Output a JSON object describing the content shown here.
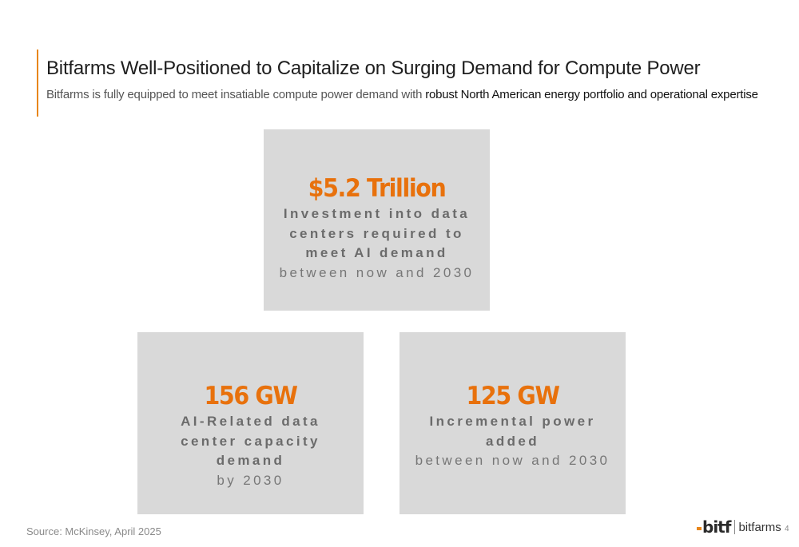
{
  "header": {
    "title": "Bitfarms Well-Positioned to Capitalize on Surging Demand for Compute Power",
    "subtitle_prefix": "Bitfarms is fully equipped to meet insatiable compute power demand with ",
    "subtitle_emphasis": "robust North American energy portfolio and operational expertise"
  },
  "cards": [
    {
      "stat": "$5.2 Trillion",
      "desc_lines": [
        "Investment into data",
        "centers required to",
        "meet AI demand"
      ],
      "light_line": "between now and 2030"
    },
    {
      "stat": "156 GW",
      "desc_lines": [
        "AI-Related data",
        "center capacity",
        "demand"
      ],
      "light_line": "by 2030"
    },
    {
      "stat": "125 GW",
      "desc_lines": [
        "Incremental power",
        "added"
      ],
      "light_line": "between now and 2030"
    }
  ],
  "footer": {
    "source": "Source: McKinsey, April 2025",
    "logo_mark": "bitf",
    "logo_text": "bitfarms",
    "page_number": "4"
  },
  "colors": {
    "accent": "#e8861a",
    "stat_orange": "#e8710c",
    "card_bg": "#d9d9d9"
  }
}
